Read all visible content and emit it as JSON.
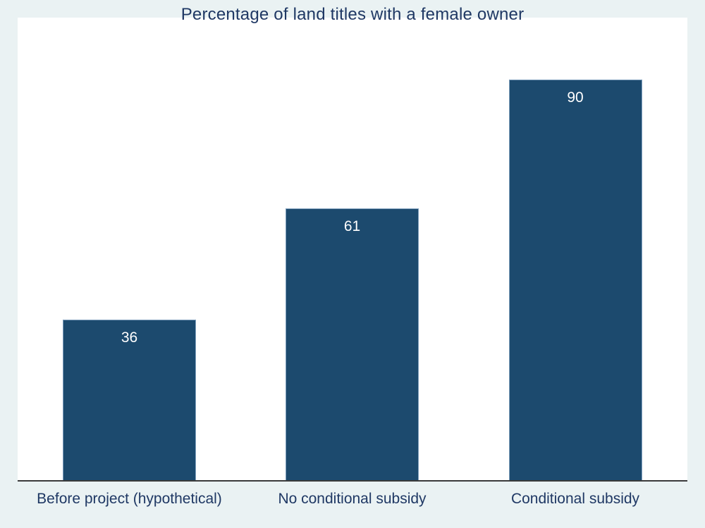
{
  "chart_data": {
    "type": "bar",
    "title": "Percentage of land titles with a female owner",
    "categories": [
      "Before project (hypothetical)",
      "No conditional subsidy",
      "Conditional subsidy"
    ],
    "values": [
      36,
      61,
      90
    ],
    "xlabel": "",
    "ylabel": "",
    "ylim": [
      0,
      104
    ],
    "grid": false,
    "legend": false,
    "value_labels_shown": true,
    "colors": {
      "page_background": "#eaf2f3",
      "plot_background": "#ffffff",
      "bar_fill": "#1c4a6e",
      "bar_outline": "#7f9fbd",
      "axis_line": "#3a3a3a",
      "text": "#1f3864",
      "value_label_text": "#ffffff"
    }
  }
}
